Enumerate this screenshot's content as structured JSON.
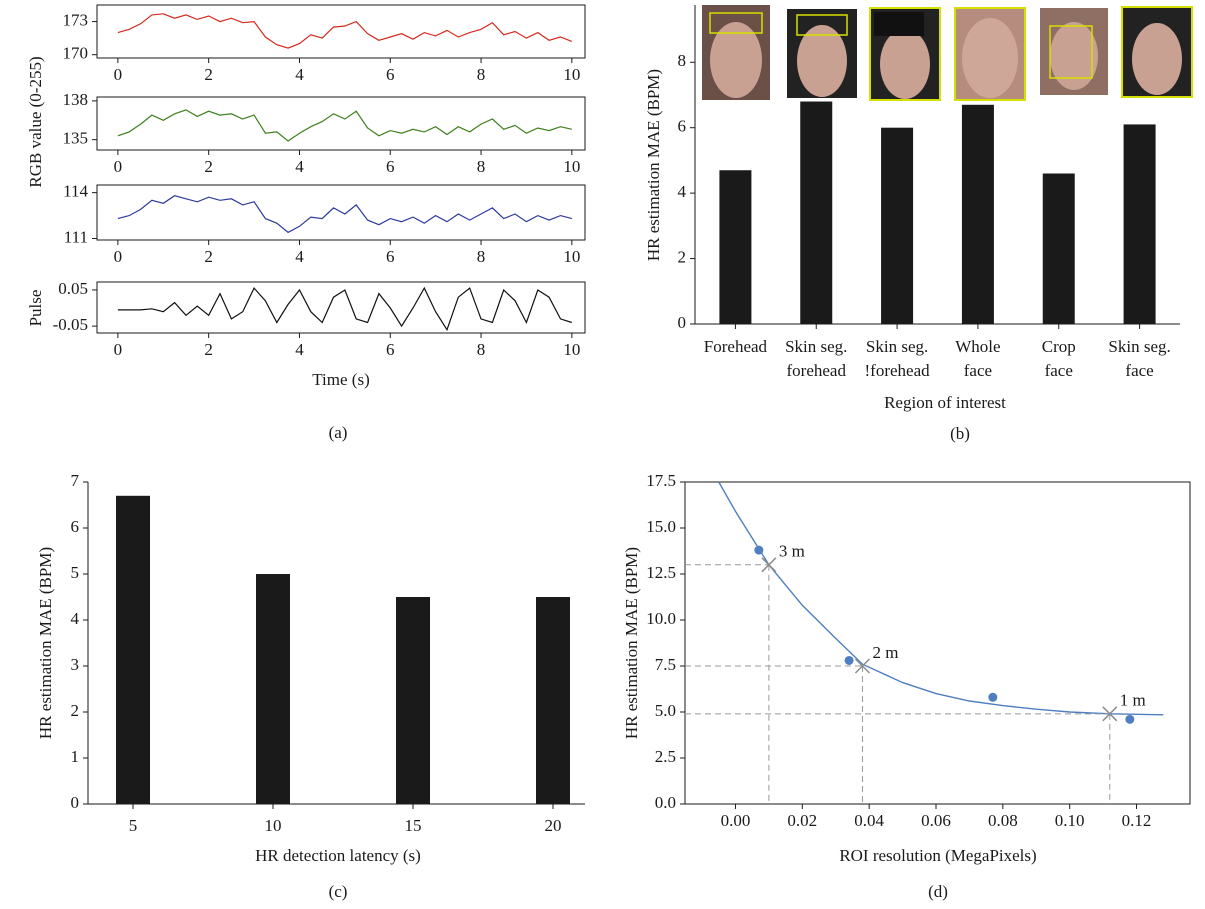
{
  "chart_data": [
    {
      "type": "line",
      "ylabel": "RGB value (0-255)",
      "color": "#d42a1e",
      "x": [
        0,
        0.25,
        0.5,
        0.75,
        1,
        1.25,
        1.5,
        1.75,
        2,
        2.25,
        2.5,
        2.75,
        3,
        3.25,
        3.5,
        3.75,
        4,
        4.25,
        4.5,
        4.75,
        5,
        5.25,
        5.5,
        5.75,
        6,
        6.25,
        6.5,
        6.75,
        7,
        7.25,
        7.5,
        7.75,
        8,
        8.25,
        8.5,
        8.75,
        9,
        9.25,
        9.5,
        9.75,
        10
      ],
      "values": [
        172.0,
        172.3,
        172.8,
        173.6,
        173.7,
        173.3,
        173.6,
        173.2,
        173.5,
        173.0,
        173.3,
        172.9,
        173.0,
        171.6,
        170.9,
        170.6,
        171.0,
        171.8,
        171.5,
        172.5,
        172.6,
        173.0,
        171.9,
        171.3,
        171.6,
        171.9,
        171.4,
        172.0,
        171.7,
        172.2,
        171.6,
        172.0,
        172.3,
        172.9,
        171.8,
        172.1,
        171.5,
        172.0,
        171.3,
        171.6,
        171.2
      ],
      "xlim": [
        -0.46,
        10.29
      ],
      "ylim": [
        169.7,
        174.5
      ],
      "xticks": [
        0,
        2,
        4,
        6,
        8,
        10
      ],
      "yticks": [
        170,
        173
      ]
    },
    {
      "type": "line",
      "color": "#3f7f1e",
      "x": [
        0,
        0.25,
        0.5,
        0.75,
        1,
        1.25,
        1.5,
        1.75,
        2,
        2.25,
        2.5,
        2.75,
        3,
        3.25,
        3.5,
        3.75,
        4,
        4.25,
        4.5,
        4.75,
        5,
        5.25,
        5.5,
        5.75,
        6,
        6.25,
        6.5,
        6.75,
        7,
        7.25,
        7.5,
        7.75,
        8,
        8.25,
        8.5,
        8.75,
        9,
        9.25,
        9.5,
        9.75,
        10
      ],
      "values": [
        135.3,
        135.6,
        136.2,
        136.9,
        136.5,
        137.0,
        137.3,
        136.8,
        137.2,
        136.9,
        137.0,
        136.6,
        136.9,
        135.5,
        135.6,
        134.9,
        135.5,
        136.0,
        136.4,
        137.0,
        136.6,
        137.2,
        135.9,
        135.3,
        135.7,
        135.5,
        135.8,
        135.6,
        136.0,
        135.4,
        136.0,
        135.6,
        136.2,
        136.6,
        135.8,
        136.1,
        135.5,
        135.9,
        135.7,
        136.0,
        135.8
      ],
      "xlim": [
        -0.46,
        10.29
      ],
      "ylim": [
        134.2,
        138.3
      ],
      "xticks": [
        0,
        2,
        4,
        6,
        8,
        10
      ],
      "yticks": [
        135,
        138
      ]
    },
    {
      "type": "line",
      "color": "#2e3a9c",
      "x": [
        0,
        0.25,
        0.5,
        0.75,
        1,
        1.25,
        1.5,
        1.75,
        2,
        2.25,
        2.5,
        2.75,
        3,
        3.25,
        3.5,
        3.75,
        4,
        4.25,
        4.5,
        4.75,
        5,
        5.25,
        5.5,
        5.75,
        6,
        6.25,
        6.5,
        6.75,
        7,
        7.25,
        7.5,
        7.75,
        8,
        8.25,
        8.5,
        8.75,
        9,
        9.25,
        9.5,
        9.75,
        10
      ],
      "values": [
        112.3,
        112.5,
        112.9,
        113.5,
        113.3,
        113.8,
        113.6,
        113.4,
        113.7,
        113.5,
        113.6,
        113.2,
        113.4,
        112.3,
        112.0,
        111.4,
        111.8,
        112.4,
        112.3,
        113.0,
        112.6,
        113.2,
        112.2,
        111.9,
        112.3,
        112.1,
        112.4,
        112.0,
        112.5,
        112.1,
        112.6,
        112.2,
        112.6,
        113.0,
        112.3,
        112.6,
        112.1,
        112.5,
        112.2,
        112.5,
        112.3
      ],
      "xlim": [
        -0.46,
        10.29
      ],
      "ylim": [
        110.9,
        114.5
      ],
      "xticks": [
        0,
        2,
        4,
        6,
        8,
        10
      ],
      "yticks": [
        111,
        114
      ]
    },
    {
      "type": "line",
      "ylabel": "Pulse",
      "xlabel": "Time (s)",
      "caption": "(a)",
      "color": "#111111",
      "x": [
        0,
        0.25,
        0.5,
        0.75,
        1,
        1.25,
        1.5,
        1.75,
        2,
        2.25,
        2.5,
        2.75,
        3,
        3.25,
        3.5,
        3.75,
        4,
        4.25,
        4.5,
        4.75,
        5,
        5.25,
        5.5,
        5.75,
        6,
        6.25,
        6.5,
        6.75,
        7,
        7.25,
        7.5,
        7.75,
        8,
        8.25,
        8.5,
        8.75,
        9,
        9.25,
        9.5,
        9.75,
        10
      ],
      "values": [
        -0.005,
        -0.005,
        -0.005,
        -0.002,
        -0.01,
        0.015,
        -0.02,
        0.005,
        -0.02,
        0.04,
        -0.03,
        -0.01,
        0.055,
        0.02,
        -0.04,
        0.01,
        0.05,
        -0.01,
        -0.04,
        0.03,
        0.05,
        -0.03,
        -0.04,
        0.04,
        0.0,
        -0.05,
        0.0,
        0.055,
        -0.01,
        -0.06,
        0.03,
        0.055,
        -0.03,
        -0.04,
        0.05,
        0.02,
        -0.04,
        0.05,
        0.03,
        -0.03,
        -0.04
      ],
      "xlim": [
        -0.46,
        10.29
      ],
      "ylim": [
        -0.069,
        0.072
      ],
      "xticks": [
        0,
        2,
        4,
        6,
        8,
        10
      ],
      "yticks": [
        -0.05,
        0.05
      ]
    },
    {
      "type": "bar",
      "ylabel": "HR estimation MAE (BPM)",
      "xlabel": "Region of interest",
      "caption": "(b)",
      "color": "#1a1a1a",
      "categories": [
        "Forehead",
        "Skin seg.\nforehead",
        "Skin seg.\n!forehead",
        "Whole\nface",
        "Crop\nface",
        "Skin seg.\nface"
      ],
      "values": [
        4.7,
        6.8,
        6.0,
        6.7,
        4.6,
        6.1
      ],
      "ylim": [
        0,
        9.75
      ],
      "yticks": [
        0,
        2,
        4,
        6,
        8
      ]
    },
    {
      "type": "bar",
      "ylabel": "HR estimation MAE (BPM)",
      "xlabel": "HR detection latency (s)",
      "caption": "(c)",
      "color": "#1a1a1a",
      "categories": [
        "5",
        "10",
        "15",
        "20"
      ],
      "values": [
        6.7,
        5.0,
        4.5,
        4.5
      ],
      "ylim": [
        0,
        7
      ],
      "yticks": [
        0,
        1,
        2,
        3,
        4,
        5,
        6,
        7
      ]
    },
    {
      "type": "scatter",
      "ylabel": "HR estimation MAE (BPM)",
      "xlabel": "ROI resolution (MegaPixels)",
      "caption": "(d)",
      "xlim": [
        -0.0151,
        0.136
      ],
      "ylim": [
        0,
        17.5
      ],
      "xticks": [
        {
          "value": 0,
          "label": "0.00"
        },
        {
          "value": 0.02,
          "label": "0.02"
        },
        {
          "value": 0.04,
          "label": "0.04"
        },
        {
          "value": 0.06,
          "label": "0.06"
        },
        {
          "value": 0.08,
          "label": "0.08"
        },
        {
          "value": 0.1,
          "label": "0.10"
        },
        {
          "value": 0.12,
          "label": "0.12"
        }
      ],
      "yticks": [
        {
          "value": 0,
          "label": "0.0"
        },
        2.5,
        {
          "value": 5,
          "label": "5.0"
        },
        7.5,
        {
          "value": 10,
          "label": "10.0"
        },
        12.5,
        {
          "value": 15,
          "label": "15.0"
        },
        17.5
      ],
      "series": [
        {
          "marker": "circle",
          "color": "#4f7fc0",
          "x": [
            0.007,
            0.034,
            0.077,
            0.118
          ],
          "values": [
            13.8,
            7.8,
            5.8,
            4.6
          ]
        },
        {
          "marker": "line",
          "color": "#4f7fc0",
          "x": [
            -0.005,
            0,
            0.01,
            0.02,
            0.03,
            0.038,
            0.05,
            0.06,
            0.07,
            0.08,
            0.09,
            0.1,
            0.112,
            0.128
          ],
          "values": [
            17.5,
            15.9,
            13.0,
            10.8,
            9.0,
            7.6,
            6.6,
            6.0,
            5.6,
            5.35,
            5.15,
            5.0,
            4.9,
            4.85
          ]
        },
        {
          "marker": "cross",
          "color": "#8c8c8c",
          "x": [
            0.01,
            0.038,
            0.112
          ],
          "values": [
            13.0,
            7.5,
            4.9
          ],
          "annotations": [
            "3 m",
            "2 m",
            "1 m"
          ]
        }
      ]
    }
  ]
}
